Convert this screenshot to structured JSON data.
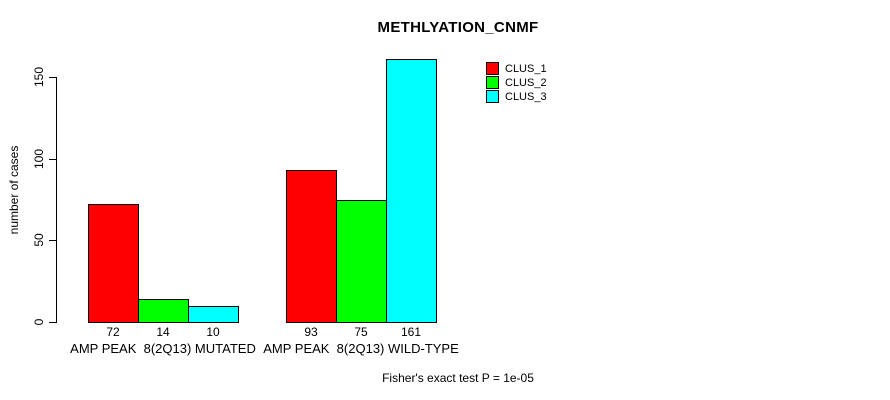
{
  "chart_data": {
    "type": "bar",
    "title": "METHLYATION_CNMF",
    "xlabel": "",
    "ylabel": "number of cases",
    "categories": [
      "AMP PEAK  8(2Q13) MUTATED",
      "AMP PEAK  8(2Q13) WILD-TYPE"
    ],
    "series": [
      {
        "name": "CLUS_1",
        "color": "#ff0000",
        "values": [
          72,
          93
        ]
      },
      {
        "name": "CLUS_2",
        "color": "#00ff00",
        "values": [
          14,
          75
        ]
      },
      {
        "name": "CLUS_3",
        "color": "#00ffff",
        "values": [
          10,
          161
        ]
      }
    ],
    "bar_value_labels": [
      [
        72,
        14,
        10
      ],
      [
        93,
        75,
        161
      ]
    ],
    "yticks": [
      0,
      50,
      100,
      150
    ],
    "ylim": [
      0,
      150
    ],
    "grid": false,
    "legend_position": "top-right",
    "annotation": "Fisher's exact test P = 1e-05"
  }
}
